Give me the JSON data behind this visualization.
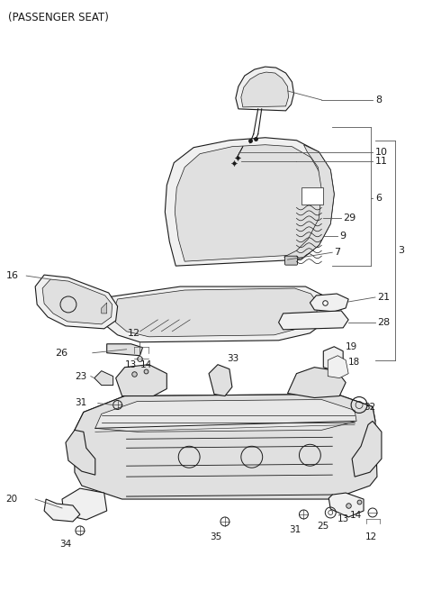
{
  "title": "(PASSENGER SEAT)",
  "bg_color": "#ffffff",
  "lc": "#1a1a1a",
  "tc": "#1a1a1a",
  "figsize": [
    4.8,
    6.56
  ],
  "dpi": 100,
  "title_fs": 8.5,
  "label_fs": 8.0
}
